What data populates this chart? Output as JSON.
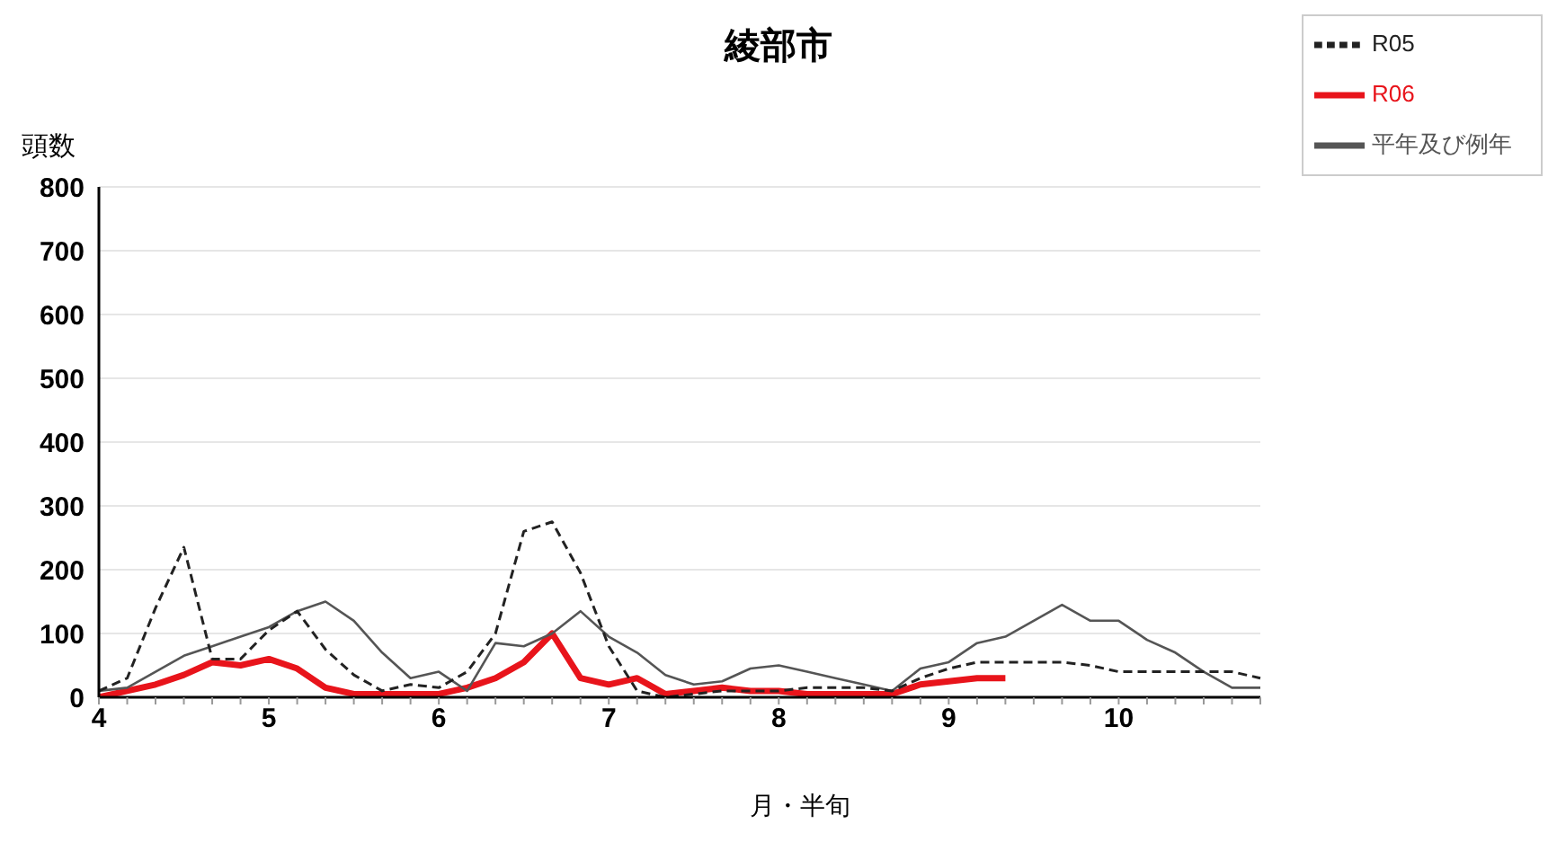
{
  "chart_data": {
    "type": "line",
    "title": "綾部市",
    "ylabel": "頭数",
    "xlabel": "月・半旬",
    "categories": [
      "4",
      null,
      null,
      null,
      null,
      null,
      "5",
      null,
      null,
      null,
      null,
      null,
      "6",
      null,
      null,
      null,
      null,
      null,
      "7",
      null,
      null,
      null,
      null,
      null,
      "8",
      null,
      null,
      null,
      null,
      null,
      "9",
      null,
      null,
      null,
      null,
      null,
      "10",
      null,
      null,
      null,
      null,
      null
    ],
    "series": [
      {
        "name": "R06",
        "color": "#e8141b",
        "line_style": "solid",
        "values": [
          0,
          10,
          20,
          35,
          55,
          50,
          60,
          45,
          15,
          5,
          5,
          5,
          5,
          15,
          30,
          55,
          100,
          30,
          20,
          30,
          5,
          10,
          15,
          10,
          10,
          5,
          5,
          5,
          5,
          20,
          25,
          30,
          30,
          null,
          null,
          null,
          null,
          null,
          null,
          null,
          null,
          null
        ]
      },
      {
        "name": "平年及び例年",
        "color": "#555555",
        "line_style": "solid",
        "values": [
          10,
          15,
          40,
          65,
          80,
          95,
          110,
          135,
          150,
          120,
          70,
          30,
          40,
          10,
          85,
          80,
          100,
          135,
          95,
          70,
          35,
          20,
          25,
          45,
          50,
          40,
          30,
          20,
          10,
          45,
          55,
          85,
          95,
          120,
          145,
          120,
          120,
          90,
          70,
          40,
          15,
          15
        ]
      },
      {
        "name": "R05",
        "color": "#222222",
        "line_style": "dashed",
        "values": [
          10,
          30,
          140,
          235,
          60,
          60,
          105,
          135,
          75,
          35,
          10,
          20,
          15,
          40,
          100,
          260,
          275,
          195,
          80,
          10,
          0,
          5,
          10,
          10,
          10,
          15,
          15,
          15,
          10,
          30,
          45,
          55,
          55,
          55,
          55,
          50,
          40,
          40,
          40,
          40,
          40,
          30
        ]
      }
    ],
    "ylim": [
      0,
      800
    ],
    "yticks": [
      0,
      100,
      200,
      300,
      400,
      500,
      600,
      700,
      800
    ],
    "grid": "y",
    "legend": "top right"
  }
}
